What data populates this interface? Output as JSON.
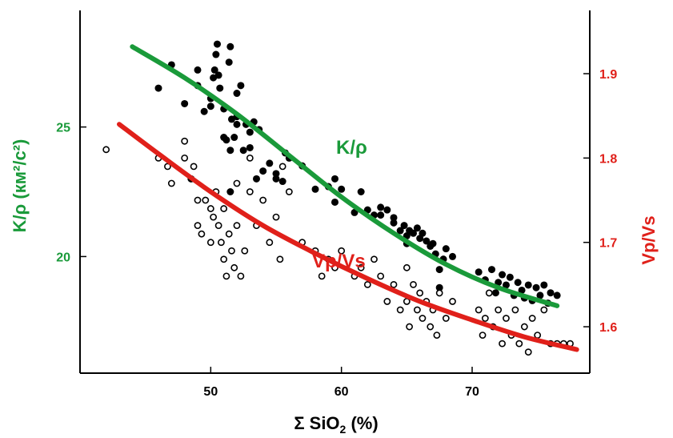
{
  "chart_data": {
    "type": "scatter",
    "title": "",
    "x_axis": {
      "label": "Σ SiO",
      "label_subscript": "2",
      "label_suffix": " (%)",
      "range": [
        40,
        79
      ],
      "ticks": [
        "50",
        "60",
        "70"
      ],
      "tick_values": [
        50,
        60,
        70
      ]
    },
    "y_left": {
      "label": "K/ρ (км²/с²)",
      "color": "#1a9a3a",
      "range": [
        15.5,
        29.5
      ],
      "ticks": [
        "20",
        "25"
      ],
      "tick_values": [
        20,
        25
      ]
    },
    "y_right": {
      "label": "Vp/Vs",
      "color": "#e0201a",
      "range": [
        1.545,
        1.975
      ],
      "ticks": [
        "1.6",
        "1.7",
        "1.8",
        "1.9"
      ],
      "tick_values": [
        1.6,
        1.7,
        1.8,
        1.9
      ]
    },
    "grid": false,
    "series": [
      {
        "marker": "filled-circle",
        "axis": "left",
        "color": "#000000",
        "points": [
          [
            46,
            26.5
          ],
          [
            47,
            27.4
          ],
          [
            48,
            25.9
          ],
          [
            48.5,
            23.0
          ],
          [
            49,
            27.2
          ],
          [
            49,
            26.6
          ],
          [
            49.5,
            25.6
          ],
          [
            50,
            25.8
          ],
          [
            50,
            26.1
          ],
          [
            50.2,
            26.9
          ],
          [
            50.3,
            27.2
          ],
          [
            50.4,
            27.8
          ],
          [
            50.5,
            28.2
          ],
          [
            50.6,
            27.0
          ],
          [
            50.7,
            26.5
          ],
          [
            51,
            25.7
          ],
          [
            51,
            24.6
          ],
          [
            51.2,
            24.5
          ],
          [
            51.4,
            27.5
          ],
          [
            51.5,
            28.1
          ],
          [
            51.6,
            25.3
          ],
          [
            51.8,
            24.6
          ],
          [
            51.5,
            24.1
          ],
          [
            51.5,
            22.5
          ],
          [
            52,
            25.4
          ],
          [
            52,
            26.3
          ],
          [
            52,
            25.1
          ],
          [
            52.3,
            26.6
          ],
          [
            52.5,
            24.1
          ],
          [
            52.7,
            25.1
          ],
          [
            53,
            24.8
          ],
          [
            53,
            24.2
          ],
          [
            53.3,
            25.2
          ],
          [
            53.5,
            23.0
          ],
          [
            53.7,
            24.9
          ],
          [
            54,
            23.3
          ],
          [
            54.5,
            23.6
          ],
          [
            55,
            23.2
          ],
          [
            55,
            23.0
          ],
          [
            55.5,
            22.9
          ],
          [
            55.7,
            24.0
          ],
          [
            56,
            23.8
          ],
          [
            57,
            23.5
          ],
          [
            58,
            22.6
          ],
          [
            59,
            22.7
          ],
          [
            59.5,
            22.1
          ],
          [
            59.5,
            23.0
          ],
          [
            60,
            22.6
          ],
          [
            61,
            21.7
          ],
          [
            61.5,
            22.5
          ],
          [
            62,
            21.8
          ],
          [
            62.5,
            21.6
          ],
          [
            63,
            21.9
          ],
          [
            63,
            21.6
          ],
          [
            63.5,
            21.8
          ],
          [
            64,
            21.5
          ],
          [
            64,
            21.3
          ],
          [
            64.5,
            21.0
          ],
          [
            64.8,
            21.2
          ],
          [
            65,
            20.8
          ],
          [
            65,
            20.5
          ],
          [
            65.2,
            21.0
          ],
          [
            65.5,
            20.9
          ],
          [
            65.8,
            21.1
          ],
          [
            66,
            20.7
          ],
          [
            66.2,
            20.9
          ],
          [
            66.5,
            20.6
          ],
          [
            66.8,
            20.4
          ],
          [
            67,
            20.5
          ],
          [
            67.2,
            20.1
          ],
          [
            67.5,
            19.5
          ],
          [
            67.5,
            18.8
          ],
          [
            67.8,
            19.9
          ],
          [
            68,
            20.3
          ],
          [
            68.5,
            20.0
          ],
          [
            70.5,
            19.4
          ],
          [
            71,
            19.1
          ],
          [
            71.5,
            19.5
          ],
          [
            71.8,
            18.6
          ],
          [
            72,
            19.0
          ],
          [
            72.3,
            19.3
          ],
          [
            72.6,
            18.9
          ],
          [
            72.9,
            19.2
          ],
          [
            73.2,
            18.5
          ],
          [
            73.5,
            19.0
          ],
          [
            73.8,
            18.7
          ],
          [
            74,
            18.4
          ],
          [
            74.3,
            18.9
          ],
          [
            74.6,
            18.3
          ],
          [
            74.9,
            18.8
          ],
          [
            75.2,
            18.5
          ],
          [
            75.5,
            18.9
          ],
          [
            75.8,
            18.2
          ],
          [
            76,
            18.6
          ],
          [
            76.5,
            18.5
          ]
        ]
      },
      {
        "marker": "open-circle",
        "axis": "right",
        "color": "#000000",
        "points": [
          [
            42,
            1.81
          ],
          [
            46,
            1.8
          ],
          [
            46.7,
            1.79
          ],
          [
            47,
            1.77
          ],
          [
            48,
            1.82
          ],
          [
            48,
            1.8
          ],
          [
            48.7,
            1.79
          ],
          [
            49,
            1.75
          ],
          [
            49,
            1.72
          ],
          [
            49.3,
            1.71
          ],
          [
            49.6,
            1.75
          ],
          [
            50,
            1.74
          ],
          [
            50,
            1.7
          ],
          [
            50.2,
            1.73
          ],
          [
            50.4,
            1.76
          ],
          [
            50.6,
            1.72
          ],
          [
            50.8,
            1.7
          ],
          [
            51,
            1.68
          ],
          [
            51,
            1.74
          ],
          [
            51.2,
            1.66
          ],
          [
            51.4,
            1.71
          ],
          [
            51.6,
            1.69
          ],
          [
            51.8,
            1.67
          ],
          [
            52,
            1.72
          ],
          [
            52,
            1.77
          ],
          [
            52.3,
            1.66
          ],
          [
            52.6,
            1.69
          ],
          [
            53,
            1.8
          ],
          [
            53,
            1.76
          ],
          [
            53.5,
            1.72
          ],
          [
            54,
            1.75
          ],
          [
            54.5,
            1.7
          ],
          [
            55,
            1.73
          ],
          [
            55.3,
            1.68
          ],
          [
            55.5,
            1.79
          ],
          [
            56,
            1.76
          ],
          [
            57,
            1.7
          ],
          [
            58,
            1.69
          ],
          [
            58.5,
            1.66
          ],
          [
            59,
            1.68
          ],
          [
            59.5,
            1.67
          ],
          [
            60,
            1.69
          ],
          [
            61,
            1.66
          ],
          [
            61.5,
            1.67
          ],
          [
            62,
            1.65
          ],
          [
            62.5,
            1.68
          ],
          [
            63,
            1.66
          ],
          [
            63.5,
            1.63
          ],
          [
            64,
            1.65
          ],
          [
            64.5,
            1.62
          ],
          [
            65,
            1.67
          ],
          [
            65,
            1.63
          ],
          [
            65.2,
            1.6
          ],
          [
            65.5,
            1.65
          ],
          [
            65.8,
            1.62
          ],
          [
            66,
            1.64
          ],
          [
            66.2,
            1.61
          ],
          [
            66.5,
            1.63
          ],
          [
            66.8,
            1.6
          ],
          [
            67,
            1.62
          ],
          [
            67.3,
            1.59
          ],
          [
            67.5,
            1.64
          ],
          [
            68,
            1.61
          ],
          [
            68.5,
            1.63
          ],
          [
            70.5,
            1.62
          ],
          [
            70.8,
            1.59
          ],
          [
            71,
            1.61
          ],
          [
            71.3,
            1.64
          ],
          [
            71.6,
            1.6
          ],
          [
            72,
            1.62
          ],
          [
            72.3,
            1.58
          ],
          [
            72.6,
            1.61
          ],
          [
            73,
            1.59
          ],
          [
            73.3,
            1.62
          ],
          [
            73.6,
            1.58
          ],
          [
            74,
            1.6
          ],
          [
            74.3,
            1.57
          ],
          [
            74.6,
            1.61
          ],
          [
            75,
            1.59
          ],
          [
            75.5,
            1.62
          ],
          [
            76,
            1.58
          ],
          [
            76.5,
            1.58
          ],
          [
            77,
            1.58
          ],
          [
            77.5,
            1.58
          ]
        ]
      },
      {
        "name": "K/ρ",
        "kind": "fit-line",
        "axis": "left",
        "color": "#1a9a3a",
        "points": [
          [
            44,
            28.1
          ],
          [
            48,
            26.9
          ],
          [
            52,
            25.5
          ],
          [
            56,
            23.9
          ],
          [
            60,
            22.3
          ],
          [
            64,
            20.9
          ],
          [
            68,
            19.7
          ],
          [
            72,
            18.8
          ],
          [
            76.5,
            18.1
          ]
        ]
      },
      {
        "name": "Vp/Vs",
        "kind": "fit-line",
        "axis": "right",
        "color": "#e0201a",
        "points": [
          [
            43,
            1.84
          ],
          [
            46,
            1.805
          ],
          [
            50,
            1.76
          ],
          [
            54,
            1.72
          ],
          [
            58,
            1.687
          ],
          [
            62,
            1.657
          ],
          [
            66,
            1.63
          ],
          [
            70,
            1.608
          ],
          [
            74,
            1.588
          ],
          [
            78,
            1.573
          ]
        ]
      }
    ]
  }
}
